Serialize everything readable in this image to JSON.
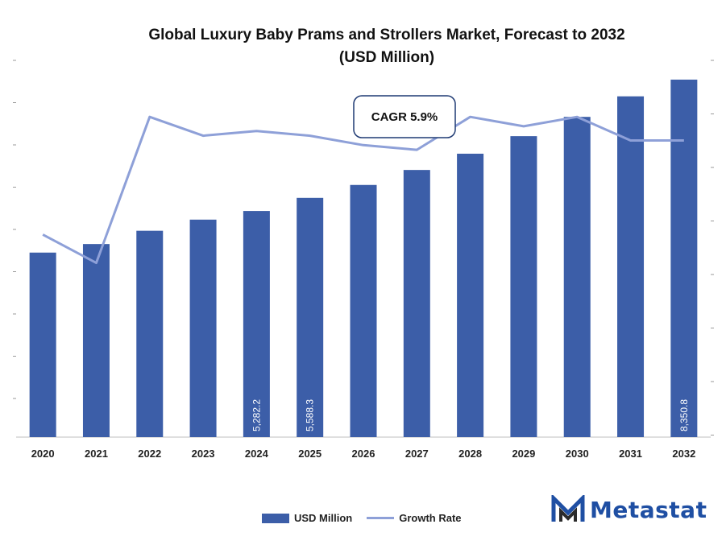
{
  "title_line1": "Global Luxury Baby Prams and Strollers Market, Forecast to 2032",
  "title_line2": "(USD Million)",
  "cagr_label": "CAGR 5.9%",
  "legend": {
    "bar_label": "USD Million",
    "line_label": "Growth Rate"
  },
  "logo": {
    "text": "Metastat",
    "icon": "metastat-m-icon"
  },
  "colors": {
    "bar": "#3c5ea8",
    "line": "#8ea0d8",
    "logo": "#1f4fa3"
  },
  "chart_data": {
    "type": "bar",
    "title": "Global Luxury Baby Prams and Strollers Market, Forecast to 2032 (USD Million)",
    "categories": [
      "2020",
      "2021",
      "2022",
      "2023",
      "2024",
      "2025",
      "2026",
      "2027",
      "2028",
      "2029",
      "2030",
      "2031",
      "2032"
    ],
    "series": [
      {
        "name": "USD Million",
        "type": "bar",
        "values": [
          4310,
          4510,
          4820,
          5080,
          5282.2,
          5588.3,
          5890,
          6240,
          6620,
          7030,
          7480,
          7960,
          8350.8
        ]
      },
      {
        "name": "Growth Rate",
        "type": "line",
        "values": [
          4.3,
          3.7,
          6.8,
          6.4,
          6.5,
          6.4,
          6.2,
          6.1,
          6.8,
          6.6,
          6.8,
          6.3,
          6.3
        ]
      }
    ],
    "data_labels": [
      {
        "category": "2024",
        "text": "5,282.2"
      },
      {
        "category": "2025",
        "text": "5,588.3"
      },
      {
        "category": "2032",
        "text": "8,350.8"
      }
    ],
    "ylim": [
      0,
      8800
    ],
    "y2lim": [
      0,
      8
    ],
    "grid": false,
    "legend_position": "bottom"
  }
}
